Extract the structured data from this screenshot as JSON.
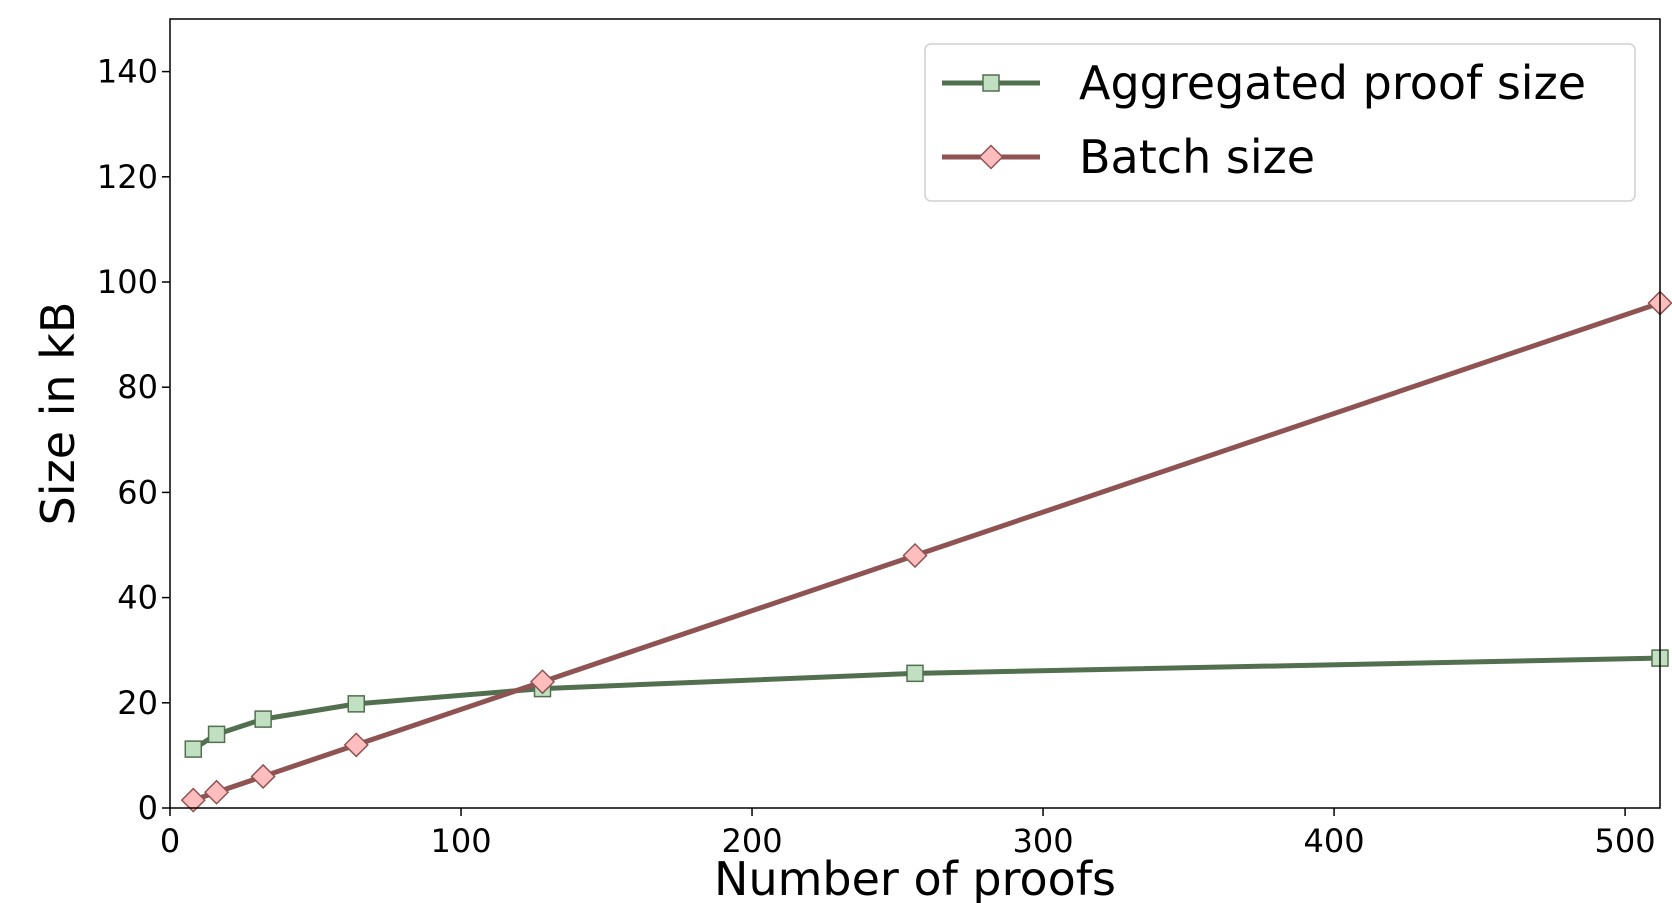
{
  "chart_data": {
    "type": "line",
    "title": "",
    "xlabel": "Number of proofs",
    "ylabel": "Size in kB",
    "xlim": [
      0,
      512
    ],
    "ylim": [
      0,
      150
    ],
    "xticks": [
      0,
      100,
      200,
      300,
      400,
      500
    ],
    "yticks": [
      0,
      20,
      40,
      60,
      80,
      100,
      120,
      140
    ],
    "grid": false,
    "legend_position": "top-right",
    "x": [
      8,
      16,
      32,
      64,
      128,
      256,
      512
    ],
    "series": [
      {
        "name": "Aggregated proof size",
        "values": [
          11.2,
          14.0,
          16.9,
          19.8,
          22.7,
          25.6,
          28.5
        ],
        "color": "#52704f",
        "marker": "square",
        "marker_fill": "#c1dfc1"
      },
      {
        "name": "Batch size",
        "values": [
          1.5,
          3.0,
          6.0,
          12.0,
          24.0,
          48.0,
          96.0
        ],
        "color": "#8e5352",
        "marker": "diamond",
        "marker_fill": "#ffbdbd"
      }
    ]
  }
}
